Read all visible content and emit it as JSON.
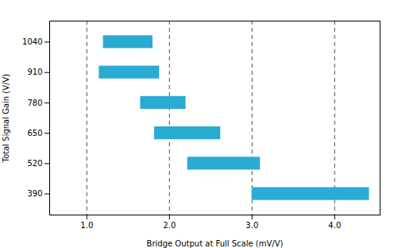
{
  "chart_data": {
    "type": "bar",
    "orientation": "horizontal",
    "xlabel": "Bridge Output at Full Scale (mV/V)",
    "ylabel": "Total Signal Gain (V/V)",
    "y": [
      1040,
      910,
      780,
      650,
      520,
      390
    ],
    "x_start": [
      1.2,
      1.15,
      1.65,
      1.82,
      2.22,
      3.0
    ],
    "x_end": [
      1.8,
      1.88,
      2.2,
      2.62,
      3.1,
      4.42
    ],
    "heights": [
      55,
      55,
      55,
      55,
      55,
      55
    ],
    "vlines": [
      1.0,
      2.0,
      3.0,
      4.0
    ],
    "color": "#29ABD4",
    "xlim": [
      0.55,
      4.55
    ],
    "ylim": [
      300,
      1130
    ],
    "xticks": [
      {
        "value": 1.0,
        "label": "1.0"
      },
      {
        "value": 2.0,
        "label": "2.0"
      },
      {
        "value": 3.0,
        "label": "3.0"
      },
      {
        "value": 4.0,
        "label": "4.0"
      }
    ],
    "yticks": [
      390,
      520,
      650,
      780,
      910,
      1040
    ],
    "grid": false
  }
}
